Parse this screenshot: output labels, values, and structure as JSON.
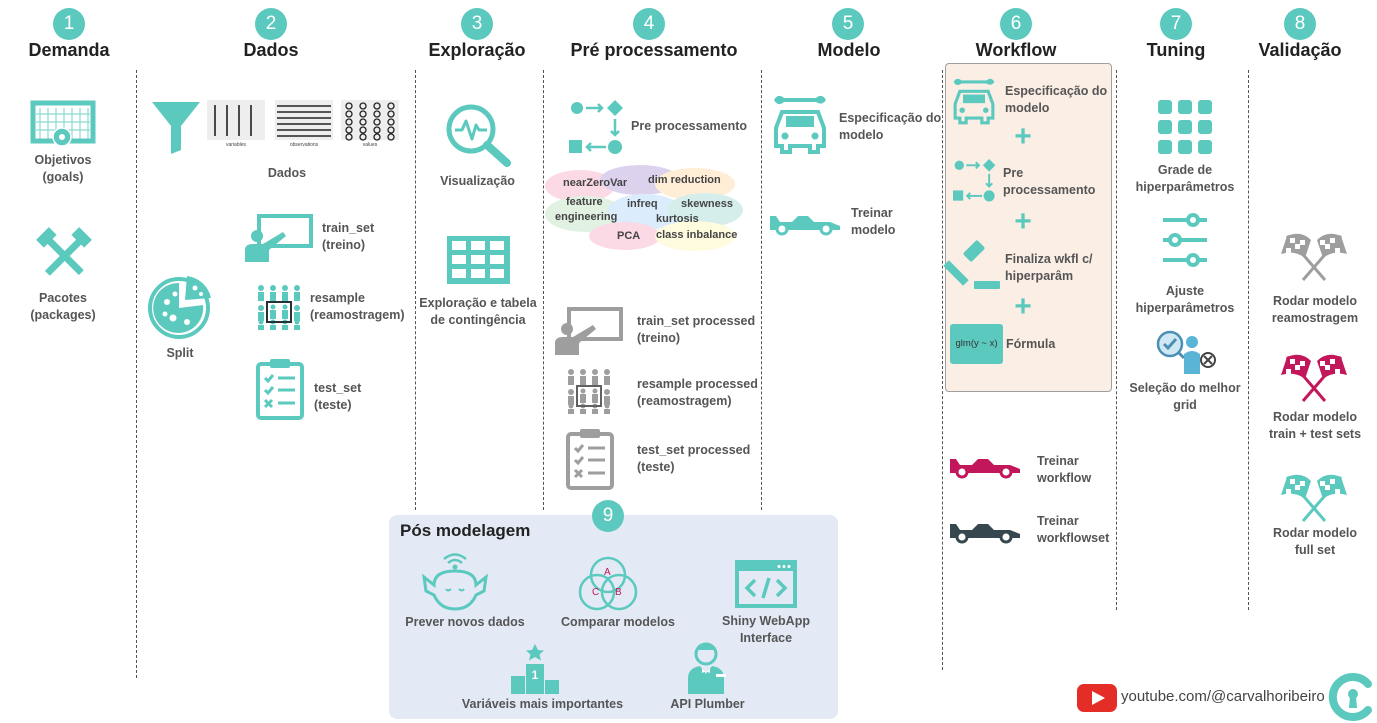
{
  "columns": [
    {
      "number": "1",
      "title": "Demanda"
    },
    {
      "number": "2",
      "title": "Dados"
    },
    {
      "number": "3",
      "title": "Exploração"
    },
    {
      "number": "4",
      "title": "Pré processamento"
    },
    {
      "number": "5",
      "title": "Modelo"
    },
    {
      "number": "6",
      "title": "Workflow"
    },
    {
      "number": "7",
      "title": "Tuning"
    },
    {
      "number": "8",
      "title": "Validação"
    }
  ],
  "demanda": {
    "objetivos": [
      "Objetivos",
      "(goals)"
    ],
    "pacotes": [
      "Pacotes",
      "(packages)"
    ]
  },
  "dados": {
    "dados_label": "Dados",
    "table_captions": [
      "variables",
      "observations",
      "values"
    ],
    "split": "Split",
    "train_set": [
      "train_set",
      "(treino)"
    ],
    "resample": [
      "resample",
      "(reamostragem)"
    ],
    "test_set": [
      "test_set",
      "(teste)"
    ]
  },
  "exploracao": {
    "visualizacao": "Visualização",
    "tabela": [
      "Exploração e tabela",
      "de contingência"
    ]
  },
  "pre": {
    "pre_processamento": "Pre processamento",
    "steps": {
      "nearZeroVar": "nearZeroVar",
      "dim_reduction": "dim reduction",
      "feature": "feature",
      "engineering": "engineering",
      "infreq": "infreq",
      "skewness": "skewness",
      "kurtosis": "kurtosis",
      "pca": "PCA",
      "class_imbalance": "class inbalance"
    },
    "train_processed": [
      "train_set processed",
      "(treino)"
    ],
    "resample_processed": [
      "resample processed",
      "(reamostragem)"
    ],
    "test_processed": [
      "test_set processed",
      "(teste)"
    ]
  },
  "modelo": {
    "especificacao": [
      "Especificação do",
      "modelo"
    ],
    "treinar": [
      "Treinar",
      "modelo"
    ]
  },
  "workflow": {
    "especificacao": [
      "Especificação do",
      "modelo"
    ],
    "pre": [
      "Pre",
      "processamento"
    ],
    "finaliza": [
      "Finaliza wkfl c/",
      "hiperparâm"
    ],
    "formula_box": "glm(y ~ x)",
    "formula": "Fórmula",
    "plus": "+",
    "treinar_workflow": [
      "Treinar",
      "workflow"
    ],
    "treinar_workflowset": [
      "Treinar",
      "workflowset"
    ]
  },
  "tuning": {
    "grade": [
      "Grade de",
      "hiperparâmetros"
    ],
    "ajuste": [
      "Ajuste",
      "hiperparâmetros"
    ],
    "selecao": [
      "Seleção do melhor",
      "grid"
    ]
  },
  "validacao": {
    "reamostragem": [
      "Rodar modelo",
      "reamostragem"
    ],
    "train_test": [
      "Rodar modelo",
      "train + test sets"
    ],
    "full": [
      "Rodar modelo",
      "full set"
    ]
  },
  "pos": {
    "number": "9",
    "title": "Pós modelagem",
    "prever": "Prever novos dados",
    "comparar": "Comparar modelos",
    "venn": [
      "A",
      "C",
      "B"
    ],
    "shiny": [
      "Shiny WebApp",
      "Interface"
    ],
    "variaveis": "Variáveis mais importantes",
    "podium": "1",
    "api": "API Plumber"
  },
  "footer": {
    "youtube": "youtube.com/@carvalhoribeiro"
  },
  "colors": {
    "teal": "#5cc9bf",
    "magenta": "#c2185b",
    "navy": "#37474f",
    "gray": "#9e9e9e",
    "pos_bg": "#e3eaf6",
    "wf_bg": "#fbeee5"
  }
}
